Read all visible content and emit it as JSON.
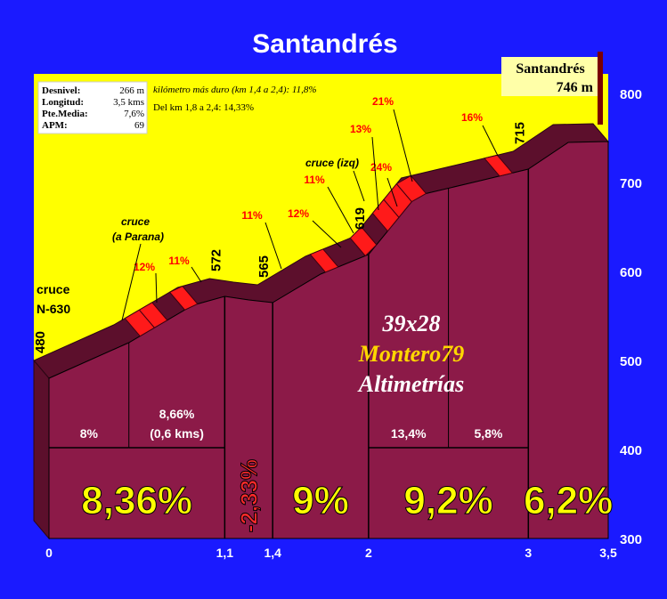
{
  "chart_data": {
    "type": "area",
    "title": "Santandrés",
    "summit": {
      "name": "Santandrés",
      "altitude": "746 m"
    },
    "stats": [
      {
        "label": "Desnivel:",
        "value": "266 m"
      },
      {
        "label": "Longitud:",
        "value": "3,5 kms"
      },
      {
        "label": "Pte.Media:",
        "value": "7,6%"
      },
      {
        "label": "APM:",
        "value": "69"
      }
    ],
    "notes": [
      "kilómetro más duro (km 1,4 a 2,4):  11,8%",
      "Del km 1,8 a 2,4:  14,33%"
    ],
    "ylim": [
      300,
      800
    ],
    "yticks": [
      300,
      400,
      500,
      600,
      700,
      800
    ],
    "xlim": [
      0,
      3.5
    ],
    "xticks": [
      {
        "value": 0,
        "label": "0"
      },
      {
        "value": 1.1,
        "label": "1,1"
      },
      {
        "value": 1.4,
        "label": "1,4"
      },
      {
        "value": 2,
        "label": "2"
      },
      {
        "value": 3,
        "label": "3"
      },
      {
        "value": 3.5,
        "label": "3,5"
      }
    ],
    "profile": [
      {
        "x": 0,
        "y": 480
      },
      {
        "x": 0.5,
        "y": 520
      },
      {
        "x": 0.9,
        "y": 562
      },
      {
        "x": 1.1,
        "y": 572
      },
      {
        "x": 1.25,
        "y": 568
      },
      {
        "x": 1.4,
        "y": 565
      },
      {
        "x": 1.7,
        "y": 597
      },
      {
        "x": 2.0,
        "y": 619
      },
      {
        "x": 2.3,
        "y": 685
      },
      {
        "x": 2.7,
        "y": 702
      },
      {
        "x": 3.0,
        "y": 715
      },
      {
        "x": 3.25,
        "y": 745
      },
      {
        "x": 3.5,
        "y": 746
      }
    ],
    "altitude_labels": [
      {
        "x": 0,
        "y": 480,
        "text": "480"
      },
      {
        "x": 1.1,
        "y": 572,
        "text": "572"
      },
      {
        "x": 1.4,
        "y": 565,
        "text": "565"
      },
      {
        "x": 2.0,
        "y": 619,
        "text": "619"
      },
      {
        "x": 3.0,
        "y": 715,
        "text": "715"
      }
    ],
    "segments": [
      {
        "from": 0,
        "to": 1.1,
        "label": "8,36%"
      },
      {
        "from": 1.1,
        "to": 1.4,
        "label": "-2,33%"
      },
      {
        "from": 1.4,
        "to": 2.0,
        "label": "9%"
      },
      {
        "from": 2.0,
        "to": 3.0,
        "label": "9,2%"
      },
      {
        "from": 3.0,
        "to": 3.5,
        "label": "6,2%"
      }
    ],
    "subsegments": [
      {
        "from": 0,
        "to": 0.5,
        "label": "8%"
      },
      {
        "from": 0.5,
        "to": 1.1,
        "label": "8,66%",
        "label2": "(0,6 kms)"
      },
      {
        "from": 2.0,
        "to": 2.5,
        "label": "13,4%"
      },
      {
        "from": 2.5,
        "to": 3.0,
        "label": "5,8%"
      }
    ],
    "steep_labels": [
      {
        "x": 0.6,
        "y": 548,
        "text": "12%"
      },
      {
        "x": 0.8,
        "y": 556,
        "text": "11%"
      },
      {
        "x": 1.6,
        "y": 588,
        "text": "11%"
      },
      {
        "x": 1.9,
        "y": 602,
        "text": "12%"
      },
      {
        "x": 2.05,
        "y": 624,
        "text": "11%"
      },
      {
        "x": 2.2,
        "y": 642,
        "text": "13%"
      },
      {
        "x": 2.3,
        "y": 655,
        "text": "24%"
      },
      {
        "x": 2.35,
        "y": 670,
        "text": "21%"
      },
      {
        "x": 2.85,
        "y": 710,
        "text": "16%"
      }
    ],
    "annotations": [
      {
        "lines": [
          "cruce",
          "N-630"
        ]
      },
      {
        "lines": [
          "cruce",
          "(a Parana)"
        ]
      },
      {
        "lines": [
          "cruce (izq)"
        ]
      }
    ],
    "watermark": [
      "39x28",
      "Montero79",
      "Altimetrías"
    ]
  },
  "colors": {
    "background": "#1a1aff",
    "sky": "#ffff00",
    "profile_fill": "#8c1a48",
    "profile_top": "#5c0f2c",
    "steep_block": "#ff1a1a",
    "percent_big": "#ffff00",
    "negative_percent": "#ff2a2a",
    "watermark_gold": "#ffd700"
  }
}
